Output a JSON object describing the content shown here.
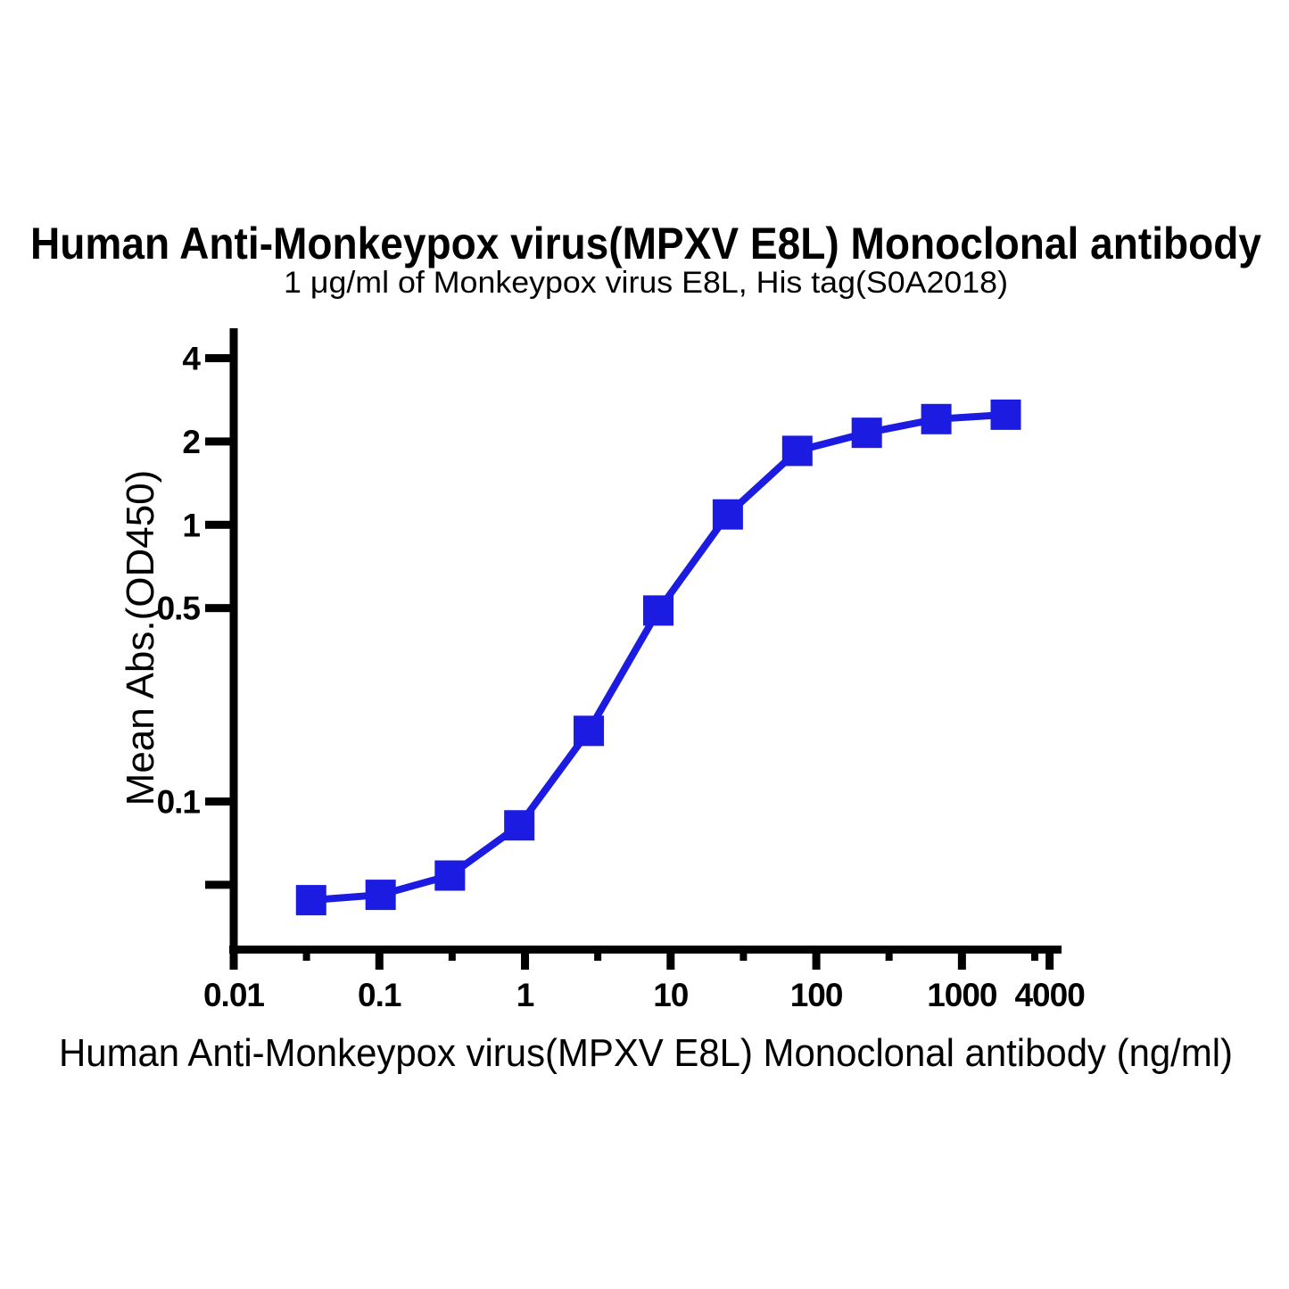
{
  "chart_data": {
    "type": "line",
    "title": "Human Anti-Monkeypox virus(MPXV E8L) Monoclonal antibody",
    "subtitle": "1 μg/ml of Monkeypox virus E8L, His tag(S0A2018)",
    "xlabel": "Human Anti-Monkeypox virus(MPXV E8L) Monoclonal antibody (ng/ml)",
    "ylabel": "Mean Abs.(OD450)",
    "x_scale": "log",
    "y_scale": "log",
    "x_range": [
      0.01,
      4000
    ],
    "y_range": [
      0.0275,
      5.1
    ],
    "grid": false,
    "legend": false,
    "axis_color": "#000000",
    "x_axis_ticks": [
      {
        "value": 0.01,
        "label": "0.01"
      },
      {
        "value": 0.1,
        "label": "0.1"
      },
      {
        "value": 1,
        "label": "1"
      },
      {
        "value": 10,
        "label": "10"
      },
      {
        "value": 100,
        "label": "100"
      },
      {
        "value": 1000,
        "label": "1000"
      },
      {
        "value": 4000,
        "label": "4000"
      }
    ],
    "x_minor_ticks": [
      0.0316,
      0.316,
      3.16,
      31.6,
      316,
      3162
    ],
    "y_axis_ticks": [
      {
        "value": 4,
        "label": "4"
      },
      {
        "value": 2,
        "label": "2"
      },
      {
        "value": 1,
        "label": "1"
      },
      {
        "value": 0.5,
        "label": "0.5"
      },
      {
        "value": 0.1,
        "label": "0.1"
      },
      {
        "value": 0.05,
        "label": ""
      }
    ],
    "series": [
      {
        "name": "Human Anti-Monkeypox virus(MPXV E8L) Monoclonal antibody",
        "color": "#1b1be1",
        "marker": "square",
        "points": [
          {
            "x": 0.034,
            "y": 0.044
          },
          {
            "x": 0.102,
            "y": 0.046
          },
          {
            "x": 0.305,
            "y": 0.054
          },
          {
            "x": 0.914,
            "y": 0.082
          },
          {
            "x": 2.74,
            "y": 0.18
          },
          {
            "x": 8.23,
            "y": 0.49
          },
          {
            "x": 24.69,
            "y": 1.09
          },
          {
            "x": 74.07,
            "y": 1.85
          },
          {
            "x": 222.2,
            "y": 2.15
          },
          {
            "x": 666.7,
            "y": 2.41
          },
          {
            "x": 2000,
            "y": 2.5
          }
        ]
      }
    ]
  }
}
